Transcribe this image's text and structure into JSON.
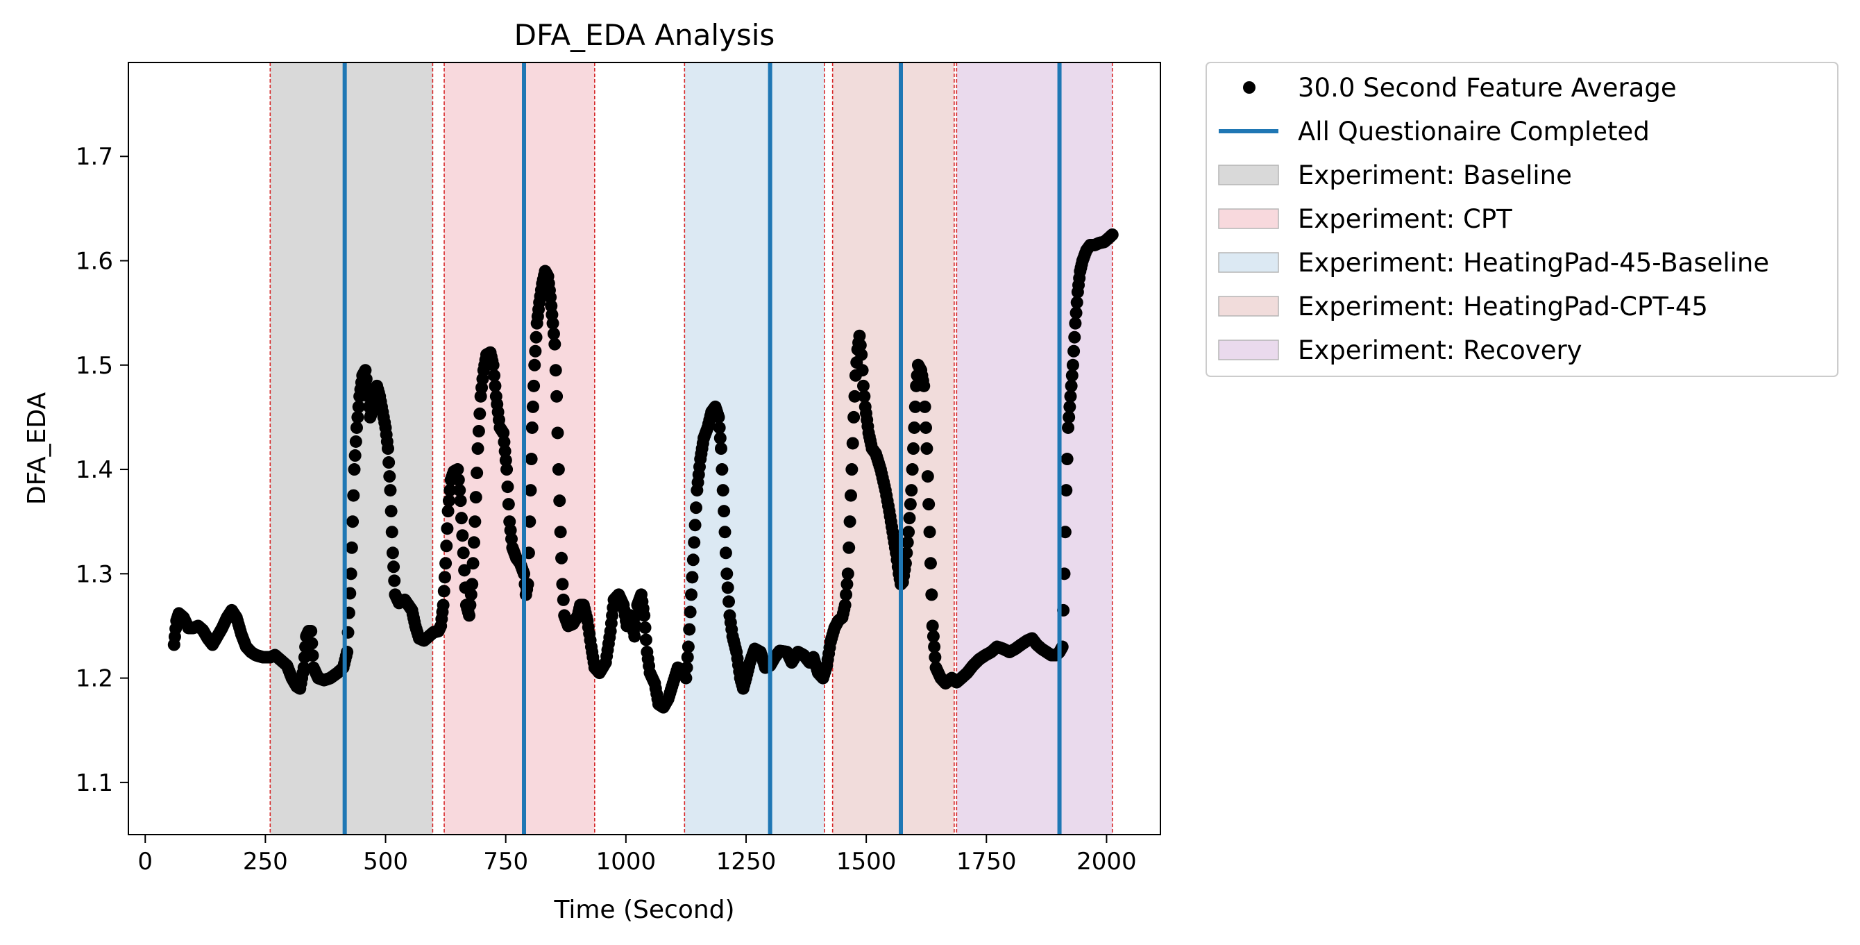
{
  "chart_data": {
    "type": "scatter",
    "title": "DFA_EDA Analysis",
    "xlabel": "Time (Second)",
    "ylabel": "DFA_EDA",
    "xlim": [
      -35,
      2112
    ],
    "ylim": [
      1.05,
      1.79
    ],
    "xticks": [
      0,
      250,
      500,
      750,
      1000,
      1250,
      1500,
      1750,
      2000
    ],
    "yticks": [
      1.1,
      1.2,
      1.3,
      1.4,
      1.5,
      1.6,
      1.7
    ],
    "grid": false,
    "legend_position": "outside-upper-right",
    "colors": {
      "points": "#000000",
      "questionnaire_line": "#1f77b4",
      "boundary_line": "#d62728",
      "baseline": "#d9d9d9",
      "cpt": "#f8d9dd",
      "heatingpad_baseline": "#dce9f3",
      "heatingpad_cpt": "#f1dcdb",
      "recovery": "#eadaed"
    },
    "legend": [
      {
        "label": "30.0 Second Feature Average",
        "kind": "marker",
        "color": "#000000"
      },
      {
        "label": "All Questionaire Completed",
        "kind": "line",
        "color": "#1f77b4"
      },
      {
        "label": "Experiment: Baseline",
        "kind": "patch",
        "color": "#d9d9d9"
      },
      {
        "label": "Experiment: CPT",
        "kind": "patch",
        "color": "#f8d9dd"
      },
      {
        "label": "Experiment: HeatingPad-45-Baseline",
        "kind": "patch",
        "color": "#dce9f3"
      },
      {
        "label": "Experiment: HeatingPad-CPT-45",
        "kind": "patch",
        "color": "#f1dcdb"
      },
      {
        "label": "Experiment: Recovery",
        "kind": "patch",
        "color": "#eadaed"
      }
    ],
    "phases": [
      {
        "name": "Experiment: Baseline",
        "start": 260,
        "end": 598,
        "color": "#d9d9d9"
      },
      {
        "name": "Experiment: CPT",
        "start": 622,
        "end": 935,
        "color": "#f8d9dd"
      },
      {
        "name": "Experiment: HeatingPad-45-Baseline",
        "start": 1122,
        "end": 1413,
        "color": "#dce9f3"
      },
      {
        "name": "Experiment: HeatingPad-CPT-45",
        "start": 1430,
        "end": 1683,
        "color": "#f1dcdb"
      },
      {
        "name": "Experiment: Recovery",
        "start": 1688,
        "end": 2012,
        "color": "#eadaed"
      }
    ],
    "questionnaire_completed": [
      415,
      788,
      1300,
      1572,
      1902
    ],
    "series": [
      {
        "name": "30.0 Second Feature Average",
        "points": [
          [
            60,
            1.232
          ],
          [
            65,
            1.255
          ],
          [
            70,
            1.262
          ],
          [
            80,
            1.258
          ],
          [
            90,
            1.248
          ],
          [
            100,
            1.248
          ],
          [
            110,
            1.25
          ],
          [
            120,
            1.246
          ],
          [
            130,
            1.238
          ],
          [
            140,
            1.232
          ],
          [
            150,
            1.24
          ],
          [
            160,
            1.248
          ],
          [
            170,
            1.258
          ],
          [
            180,
            1.265
          ],
          [
            190,
            1.258
          ],
          [
            200,
            1.242
          ],
          [
            210,
            1.23
          ],
          [
            220,
            1.225
          ],
          [
            230,
            1.222
          ],
          [
            245,
            1.22
          ],
          [
            260,
            1.22
          ],
          [
            270,
            1.222
          ],
          [
            280,
            1.218
          ],
          [
            295,
            1.212
          ],
          [
            305,
            1.2
          ],
          [
            315,
            1.192
          ],
          [
            322,
            1.19
          ],
          [
            330,
            1.21
          ],
          [
            335,
            1.24
          ],
          [
            340,
            1.245
          ],
          [
            345,
            1.245
          ],
          [
            350,
            1.21
          ],
          [
            360,
            1.2
          ],
          [
            372,
            1.198
          ],
          [
            385,
            1.2
          ],
          [
            400,
            1.205
          ],
          [
            412,
            1.21
          ],
          [
            420,
            1.225
          ],
          [
            428,
            1.3
          ],
          [
            435,
            1.4
          ],
          [
            440,
            1.44
          ],
          [
            446,
            1.47
          ],
          [
            452,
            1.49
          ],
          [
            458,
            1.495
          ],
          [
            464,
            1.47
          ],
          [
            468,
            1.45
          ],
          [
            472,
            1.455
          ],
          [
            476,
            1.47
          ],
          [
            482,
            1.48
          ],
          [
            488,
            1.47
          ],
          [
            494,
            1.455
          ],
          [
            500,
            1.44
          ],
          [
            505,
            1.42
          ],
          [
            510,
            1.38
          ],
          [
            515,
            1.32
          ],
          [
            520,
            1.28
          ],
          [
            528,
            1.272
          ],
          [
            540,
            1.275
          ],
          [
            555,
            1.265
          ],
          [
            562,
            1.25
          ],
          [
            570,
            1.238
          ],
          [
            580,
            1.236
          ],
          [
            590,
            1.24
          ],
          [
            600,
            1.244
          ],
          [
            610,
            1.245
          ],
          [
            615,
            1.25
          ],
          [
            620,
            1.27
          ],
          [
            625,
            1.31
          ],
          [
            630,
            1.36
          ],
          [
            636,
            1.39
          ],
          [
            642,
            1.398
          ],
          [
            650,
            1.4
          ],
          [
            656,
            1.37
          ],
          [
            662,
            1.32
          ],
          [
            668,
            1.27
          ],
          [
            674,
            1.26
          ],
          [
            680,
            1.29
          ],
          [
            686,
            1.35
          ],
          [
            692,
            1.42
          ],
          [
            698,
            1.47
          ],
          [
            704,
            1.495
          ],
          [
            710,
            1.51
          ],
          [
            718,
            1.512
          ],
          [
            724,
            1.5
          ],
          [
            730,
            1.47
          ],
          [
            738,
            1.44
          ],
          [
            745,
            1.435
          ],
          [
            752,
            1.4
          ],
          [
            758,
            1.35
          ],
          [
            764,
            1.325
          ],
          [
            772,
            1.315
          ],
          [
            780,
            1.31
          ],
          [
            788,
            1.3
          ],
          [
            792,
            1.28
          ],
          [
            796,
            1.29
          ],
          [
            800,
            1.35
          ],
          [
            805,
            1.44
          ],
          [
            810,
            1.5
          ],
          [
            815,
            1.54
          ],
          [
            820,
            1.56
          ],
          [
            826,
            1.578
          ],
          [
            832,
            1.59
          ],
          [
            838,
            1.585
          ],
          [
            843,
            1.565
          ],
          [
            848,
            1.54
          ],
          [
            852,
            1.52
          ],
          [
            856,
            1.47
          ],
          [
            860,
            1.4
          ],
          [
            864,
            1.34
          ],
          [
            868,
            1.29
          ],
          [
            872,
            1.26
          ],
          [
            880,
            1.25
          ],
          [
            890,
            1.252
          ],
          [
            900,
            1.26
          ],
          [
            905,
            1.27
          ],
          [
            912,
            1.27
          ],
          [
            920,
            1.255
          ],
          [
            928,
            1.23
          ],
          [
            935,
            1.21
          ],
          [
            945,
            1.205
          ],
          [
            958,
            1.215
          ],
          [
            968,
            1.245
          ],
          [
            975,
            1.275
          ],
          [
            985,
            1.28
          ],
          [
            995,
            1.27
          ],
          [
            1002,
            1.25
          ],
          [
            1010,
            1.26
          ],
          [
            1018,
            1.24
          ],
          [
            1024,
            1.27
          ],
          [
            1032,
            1.28
          ],
          [
            1038,
            1.26
          ],
          [
            1044,
            1.225
          ],
          [
            1050,
            1.205
          ],
          [
            1060,
            1.195
          ],
          [
            1068,
            1.175
          ],
          [
            1078,
            1.172
          ],
          [
            1088,
            1.18
          ],
          [
            1098,
            1.195
          ],
          [
            1108,
            1.21
          ],
          [
            1118,
            1.205
          ],
          [
            1125,
            1.2
          ],
          [
            1130,
            1.23
          ],
          [
            1136,
            1.28
          ],
          [
            1142,
            1.33
          ],
          [
            1148,
            1.38
          ],
          [
            1155,
            1.41
          ],
          [
            1162,
            1.43
          ],
          [
            1170,
            1.44
          ],
          [
            1178,
            1.455
          ],
          [
            1186,
            1.46
          ],
          [
            1193,
            1.45
          ],
          [
            1198,
            1.42
          ],
          [
            1204,
            1.36
          ],
          [
            1210,
            1.3
          ],
          [
            1216,
            1.26
          ],
          [
            1222,
            1.24
          ],
          [
            1230,
            1.225
          ],
          [
            1238,
            1.2
          ],
          [
            1244,
            1.19
          ],
          [
            1250,
            1.2
          ],
          [
            1258,
            1.215
          ],
          [
            1268,
            1.228
          ],
          [
            1280,
            1.225
          ],
          [
            1290,
            1.21
          ],
          [
            1300,
            1.212
          ],
          [
            1310,
            1.22
          ],
          [
            1320,
            1.226
          ],
          [
            1335,
            1.225
          ],
          [
            1345,
            1.215
          ],
          [
            1358,
            1.225
          ],
          [
            1370,
            1.222
          ],
          [
            1382,
            1.215
          ],
          [
            1390,
            1.22
          ],
          [
            1400,
            1.205
          ],
          [
            1410,
            1.2
          ],
          [
            1418,
            1.212
          ],
          [
            1426,
            1.235
          ],
          [
            1434,
            1.248
          ],
          [
            1442,
            1.255
          ],
          [
            1450,
            1.258
          ],
          [
            1456,
            1.27
          ],
          [
            1462,
            1.3
          ],
          [
            1466,
            1.35
          ],
          [
            1470,
            1.4
          ],
          [
            1474,
            1.45
          ],
          [
            1478,
            1.49
          ],
          [
            1482,
            1.515
          ],
          [
            1486,
            1.528
          ],
          [
            1490,
            1.51
          ],
          [
            1494,
            1.48
          ],
          [
            1498,
            1.46
          ],
          [
            1505,
            1.435
          ],
          [
            1512,
            1.42
          ],
          [
            1520,
            1.415
          ],
          [
            1530,
            1.4
          ],
          [
            1540,
            1.38
          ],
          [
            1548,
            1.36
          ],
          [
            1555,
            1.34
          ],
          [
            1562,
            1.32
          ],
          [
            1568,
            1.3
          ],
          [
            1572,
            1.29
          ],
          [
            1576,
            1.292
          ],
          [
            1582,
            1.31
          ],
          [
            1588,
            1.34
          ],
          [
            1594,
            1.38
          ],
          [
            1600,
            1.44
          ],
          [
            1604,
            1.48
          ],
          [
            1608,
            1.5
          ],
          [
            1614,
            1.495
          ],
          [
            1620,
            1.48
          ],
          [
            1626,
            1.42
          ],
          [
            1632,
            1.34
          ],
          [
            1638,
            1.25
          ],
          [
            1645,
            1.21
          ],
          [
            1655,
            1.2
          ],
          [
            1665,
            1.195
          ],
          [
            1678,
            1.2
          ],
          [
            1688,
            1.196
          ],
          [
            1698,
            1.2
          ],
          [
            1710,
            1.205
          ],
          [
            1722,
            1.212
          ],
          [
            1735,
            1.218
          ],
          [
            1748,
            1.222
          ],
          [
            1760,
            1.225
          ],
          [
            1772,
            1.23
          ],
          [
            1785,
            1.228
          ],
          [
            1798,
            1.225
          ],
          [
            1810,
            1.228
          ],
          [
            1822,
            1.232
          ],
          [
            1835,
            1.236
          ],
          [
            1845,
            1.238
          ],
          [
            1855,
            1.232
          ],
          [
            1865,
            1.228
          ],
          [
            1875,
            1.225
          ],
          [
            1885,
            1.222
          ],
          [
            1895,
            1.222
          ],
          [
            1902,
            1.225
          ],
          [
            1908,
            1.23
          ],
          [
            1912,
            1.3
          ],
          [
            1916,
            1.38
          ],
          [
            1920,
            1.44
          ],
          [
            1925,
            1.47
          ],
          [
            1930,
            1.5
          ],
          [
            1935,
            1.54
          ],
          [
            1940,
            1.57
          ],
          [
            1945,
            1.59
          ],
          [
            1950,
            1.6
          ],
          [
            1958,
            1.61
          ],
          [
            1966,
            1.615
          ],
          [
            1975,
            1.615
          ],
          [
            1985,
            1.617
          ],
          [
            1995,
            1.618
          ],
          [
            2005,
            1.622
          ],
          [
            2012,
            1.625
          ]
        ]
      }
    ]
  }
}
